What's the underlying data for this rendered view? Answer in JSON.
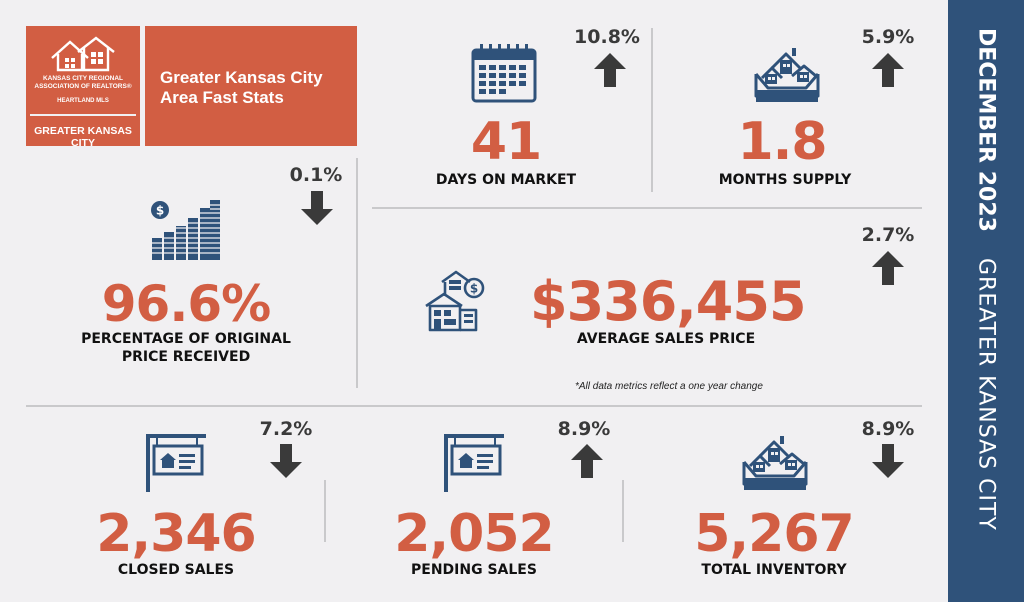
{
  "header": {
    "logo": {
      "line1": "KANSAS CITY REGIONAL",
      "line2": "ASSOCIATION OF REALTORS®",
      "line3": "HEARTLAND MLS",
      "region": "GREATER KANSAS CITY"
    },
    "title": "Greater Kansas City Area Fast Stats"
  },
  "side_band": {
    "period": "DECEMBER 2023",
    "area": "GREATER KANSAS CITY"
  },
  "stats": {
    "days_on_market": {
      "value": "41",
      "label": "DAYS ON MARKET",
      "change": "10.8%",
      "direction": "up",
      "icon": "calendar-icon"
    },
    "months_supply": {
      "value": "1.8",
      "label": "MONTHS SUPPLY",
      "change": "5.9%",
      "direction": "up",
      "icon": "houses-box-icon"
    },
    "pct_original_price": {
      "value": "96.6%",
      "label_line1": "PERCENTAGE OF ORIGINAL",
      "label_line2": "PRICE RECEIVED",
      "change": "0.1%",
      "direction": "down",
      "icon": "coin-stacks-icon"
    },
    "avg_sales_price": {
      "value": "$336,455",
      "label": "AVERAGE SALES PRICE",
      "change": "2.7%",
      "direction": "up",
      "icon": "house-price-icon"
    },
    "closed_sales": {
      "value": "2,346",
      "label": "CLOSED SALES",
      "change": "7.2%",
      "direction": "down",
      "icon": "sale-sign-icon"
    },
    "pending_sales": {
      "value": "2,052",
      "label": "PENDING SALES",
      "change": "8.9%",
      "direction": "up",
      "icon": "sale-sign-icon"
    },
    "total_inventory": {
      "value": "5,267",
      "label": "TOTAL INVENTORY",
      "change": "8.9%",
      "direction": "down",
      "icon": "houses-box-icon"
    }
  },
  "footnote": "*All data metrics reflect a one year change",
  "colors": {
    "accent": "#d25e43",
    "navy": "#2f527a",
    "icon": "#2f527a",
    "arrow": "#3a3a3a",
    "background": "#f1f0f2"
  }
}
